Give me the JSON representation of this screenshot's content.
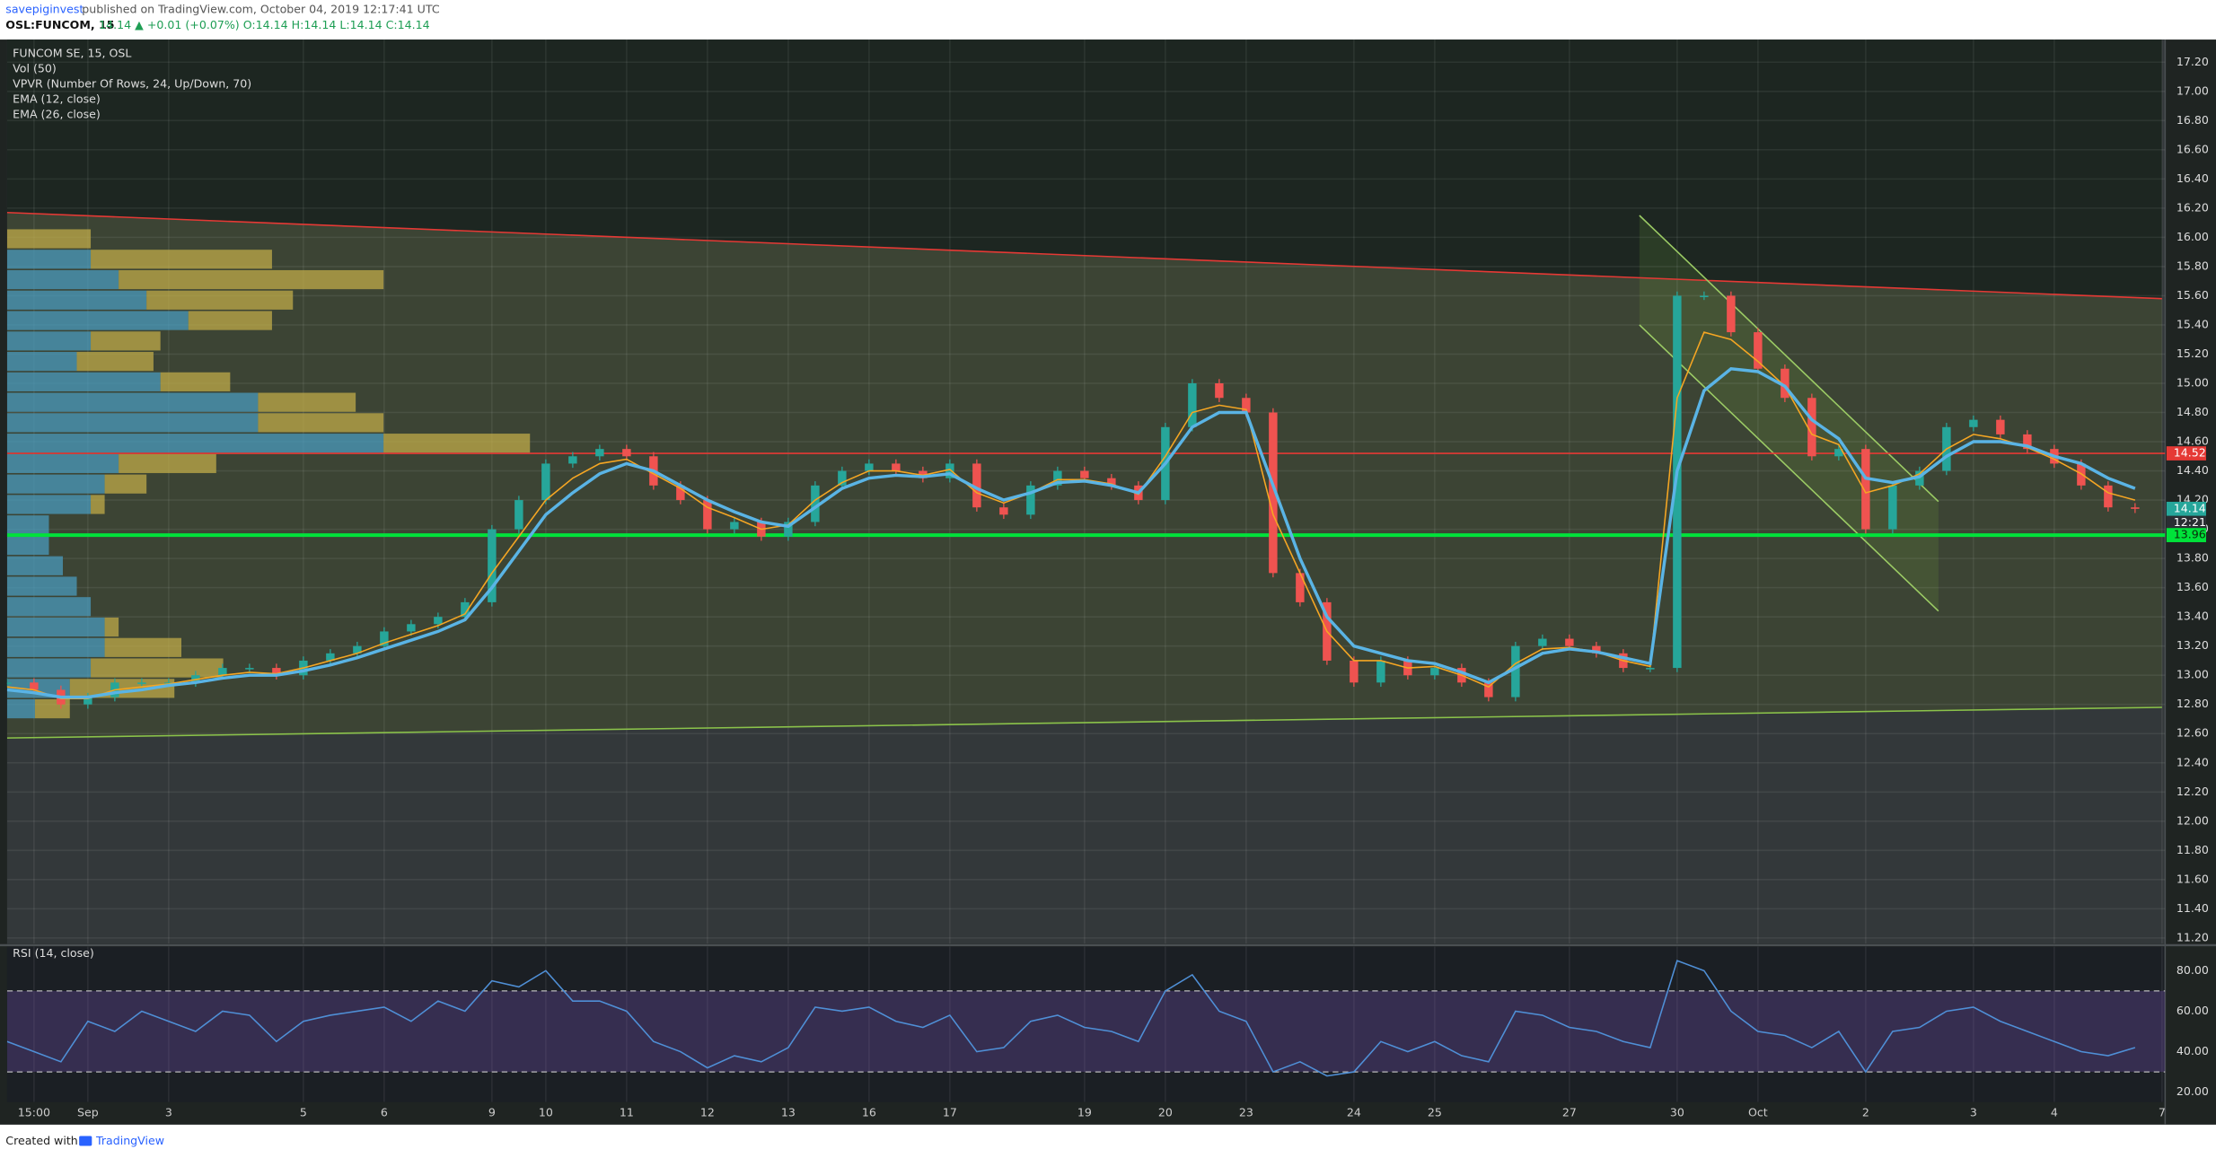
{
  "header": {
    "author": "savepiginvest",
    "published": "published on TradingView.com, October 04, 2019 12:17:41 UTC",
    "symbol": "OSL:FUNCOM, 15",
    "quote": "14.14 ▲ +0.01 (+0.07%) O:14.14 H:14.14 L:14.14 C:14.14"
  },
  "footer": {
    "prefix": "Created with",
    "brand": "TradingView"
  },
  "chart_data": [
    {
      "type": "candlestick",
      "title": "FUNCOM SE, 15, OSL",
      "indicators": [
        "Vol (50)",
        "VPVR (Number Of Rows, 24, Up/Down, 70)",
        "EMA (12, close)",
        "EMA (26, close)"
      ],
      "categories": [
        null,
        "15:00",
        null,
        "Sep",
        null,
        null,
        "3",
        null,
        null,
        null,
        null,
        "5",
        null,
        null,
        "6",
        null,
        null,
        null,
        "9",
        null,
        "10",
        null,
        null,
        "11",
        null,
        null,
        "12",
        null,
        null,
        "13",
        null,
        null,
        "16",
        null,
        null,
        "17",
        null,
        null,
        null,
        null,
        "19",
        null,
        null,
        "20",
        null,
        null,
        "23",
        null,
        null,
        null,
        "24",
        null,
        null,
        "25",
        null,
        null,
        null,
        null,
        "27",
        null,
        null,
        null,
        "30",
        null,
        null,
        "Oct",
        null,
        null,
        null,
        "2",
        null,
        null,
        null,
        "3",
        null,
        null,
        "4",
        null,
        null,
        null,
        "7"
      ],
      "values": [
        12.95,
        12.9,
        12.8,
        12.85,
        12.95,
        12.95,
        12.95,
        13.0,
        13.05,
        13.05,
        13.0,
        13.1,
        13.15,
        13.2,
        13.3,
        13.35,
        13.4,
        13.5,
        14.0,
        14.2,
        14.45,
        14.5,
        14.55,
        14.5,
        14.3,
        14.2,
        14.0,
        14.05,
        13.95,
        14.05,
        14.3,
        14.4,
        14.45,
        14.4,
        14.35,
        14.45,
        14.15,
        14.1,
        14.3,
        14.4,
        14.35,
        14.3,
        14.2,
        14.7,
        15.0,
        14.9,
        14.8,
        13.7,
        13.5,
        13.1,
        12.95,
        13.1,
        13.0,
        13.05,
        12.95,
        12.85,
        13.2,
        13.25,
        13.2,
        13.15,
        13.05,
        13.05,
        15.6,
        15.6,
        15.35,
        15.1,
        14.9,
        14.5,
        14.55,
        14.0,
        14.3,
        14.4,
        14.7,
        14.75,
        14.65,
        14.55,
        14.45,
        14.3,
        14.15,
        14.14,
        null
      ],
      "up_color": "#26a69a",
      "down_color": "#ef5350",
      "series": [
        {
          "name": "EMA (12, close)",
          "color": "#f5a623",
          "values": [
            12.92,
            12.9,
            12.84,
            12.84,
            12.9,
            12.92,
            12.94,
            12.97,
            13.0,
            13.02,
            13.01,
            13.05,
            13.1,
            13.15,
            13.22,
            13.28,
            13.34,
            13.42,
            13.7,
            13.95,
            14.2,
            14.35,
            14.45,
            14.48,
            14.38,
            14.28,
            14.15,
            14.08,
            14.0,
            14.03,
            14.2,
            14.32,
            14.4,
            14.4,
            14.37,
            14.41,
            14.25,
            14.18,
            14.25,
            14.34,
            14.34,
            14.31,
            14.24,
            14.5,
            14.8,
            14.85,
            14.82,
            14.1,
            13.7,
            13.3,
            13.1,
            13.1,
            13.05,
            13.06,
            13.0,
            12.92,
            13.08,
            13.18,
            13.19,
            13.16,
            13.1,
            13.06,
            14.9,
            15.35,
            15.3,
            15.15,
            14.98,
            14.65,
            14.58,
            14.25,
            14.3,
            14.38,
            14.55,
            14.65,
            14.62,
            14.56,
            14.48,
            14.38,
            14.25,
            14.2,
            null
          ]
        },
        {
          "name": "EMA (26, close)",
          "color": "#5ab4e5",
          "values": [
            12.9,
            12.88,
            12.85,
            12.85,
            12.88,
            12.9,
            12.93,
            12.95,
            12.98,
            13.0,
            13.0,
            13.03,
            13.07,
            13.12,
            13.18,
            13.24,
            13.3,
            13.38,
            13.6,
            13.85,
            14.1,
            14.25,
            14.38,
            14.45,
            14.4,
            14.3,
            14.2,
            14.12,
            14.05,
            14.02,
            14.15,
            14.28,
            14.35,
            14.37,
            14.36,
            14.38,
            14.28,
            14.2,
            14.25,
            14.32,
            14.33,
            14.3,
            14.25,
            14.45,
            14.7,
            14.8,
            14.8,
            14.3,
            13.8,
            13.4,
            13.2,
            13.15,
            13.1,
            13.08,
            13.02,
            12.95,
            13.05,
            13.15,
            13.18,
            13.16,
            13.12,
            13.08,
            14.4,
            14.95,
            15.1,
            15.08,
            14.98,
            14.75,
            14.62,
            14.35,
            14.32,
            14.36,
            14.5,
            14.6,
            14.6,
            14.57,
            14.5,
            14.45,
            14.35,
            14.28,
            null
          ]
        }
      ],
      "ylim": [
        11.16,
        17.355
      ],
      "yticks": [
        {
          "value": 11.2,
          "label": "11.20"
        },
        {
          "value": 11.4,
          "label": "11.40"
        },
        {
          "value": 11.6,
          "label": "11.60"
        },
        {
          "value": 11.8,
          "label": "11.80"
        },
        {
          "value": 12.0,
          "label": "12.00"
        },
        {
          "value": 12.2,
          "label": "12.20"
        },
        {
          "value": 12.4,
          "label": "12.40"
        },
        {
          "value": 12.6,
          "label": "12.60"
        },
        {
          "value": 12.8,
          "label": "12.80"
        },
        {
          "value": 13.0,
          "label": "13.00"
        },
        {
          "value": 13.2,
          "label": "13.20"
        },
        {
          "value": 13.4,
          "label": "13.40"
        },
        {
          "value": 13.6,
          "label": "13.60"
        },
        {
          "value": 13.8,
          "label": "13.80"
        },
        {
          "value": 14.0,
          "label": "14.00"
        },
        {
          "value": 14.2,
          "label": "14.20"
        },
        {
          "value": 14.4,
          "label": "14.40"
        },
        {
          "value": 14.6,
          "label": "14.60"
        },
        {
          "value": 14.8,
          "label": "14.80"
        },
        {
          "value": 15.0,
          "label": "15.00"
        },
        {
          "value": 15.2,
          "label": "15.20"
        },
        {
          "value": 15.4,
          "label": "15.40"
        },
        {
          "value": 15.6,
          "label": "15.60"
        },
        {
          "value": 15.8,
          "label": "15.80"
        },
        {
          "value": 16.0,
          "label": "16.00"
        },
        {
          "value": 16.2,
          "label": "16.20"
        },
        {
          "value": 16.4,
          "label": "16.40"
        },
        {
          "value": 16.6,
          "label": "16.60"
        },
        {
          "value": 16.8,
          "label": "16.80"
        },
        {
          "value": 17.0,
          "label": "17.00"
        },
        {
          "value": 17.2,
          "label": "17.20"
        }
      ],
      "grid": true,
      "lines": [
        {
          "points": [
            [
              0,
              16.17
            ],
            [
              80,
              15.58
            ]
          ],
          "color": "#e53935"
        },
        {
          "points": [
            [
              0,
              12.57
            ],
            [
              80,
              12.78
            ]
          ],
          "color": "#8bc34a"
        },
        {
          "points": [
            [
              60.6,
              16.15
            ],
            [
              71.7,
              14.19
            ]
          ],
          "color": "#9ccc65"
        },
        {
          "points": [
            [
              60.6,
              15.4
            ],
            [
              71.7,
              13.44
            ]
          ],
          "color": "#9ccc65"
        }
      ],
      "price_labels": [
        {
          "value": 14.52,
          "color": "#e53935",
          "hline": true
        },
        {
          "value": 14.14,
          "color": "#26a69a",
          "hline": false
        },
        {
          "value": 13.96,
          "color": "#00e23a",
          "hline": true
        }
      ],
      "countdown": "12:21",
      "vpvr": {
        "bins": [
          16.06,
          15.92,
          15.78,
          15.64,
          15.5,
          15.36,
          15.22,
          15.08,
          14.94,
          14.8,
          14.66,
          14.52,
          14.38,
          14.24,
          14.1,
          13.96,
          13.82,
          13.68,
          13.54,
          13.4,
          13.26,
          13.12,
          12.98,
          12.84,
          12.7
        ],
        "up": [
          0,
          60,
          80,
          100,
          130,
          60,
          50,
          110,
          180,
          180,
          270,
          80,
          70,
          60,
          30,
          30,
          40,
          50,
          60,
          70,
          70,
          60,
          45,
          20
        ],
        "down": [
          60,
          130,
          190,
          105,
          60,
          50,
          55,
          50,
          70,
          90,
          105,
          70,
          30,
          10,
          0,
          0,
          0,
          0,
          0,
          10,
          55,
          95,
          75,
          25
        ],
        "up_color": "#4a9fc6",
        "down_color": "#c8b04a"
      }
    },
    {
      "type": "line",
      "title": "RSI (14, close)",
      "color": "#4f8fd6",
      "values": [
        45,
        40,
        35,
        55,
        50,
        60,
        55,
        50,
        60,
        58,
        45,
        55,
        58,
        60,
        62,
        55,
        65,
        60,
        75,
        72,
        80,
        65,
        65,
        60,
        45,
        40,
        32,
        38,
        35,
        42,
        62,
        60,
        62,
        55,
        52,
        58,
        40,
        42,
        55,
        58,
        52,
        50,
        45,
        70,
        78,
        60,
        55,
        30,
        35,
        28,
        30,
        45,
        40,
        45,
        38,
        35,
        60,
        58,
        52,
        50,
        45,
        42,
        85,
        80,
        60,
        50,
        48,
        42,
        50,
        30,
        50,
        52,
        60,
        62,
        55,
        50,
        45,
        40,
        38,
        42,
        null
      ],
      "ylim": [
        15.1,
        91.9
      ],
      "yticks": [
        {
          "value": 20,
          "label": "20.00"
        },
        {
          "value": 40,
          "label": "40.00"
        },
        {
          "value": 60,
          "label": "60.00"
        },
        {
          "value": 80,
          "label": "80.00"
        }
      ],
      "bands": [
        30,
        70
      ]
    }
  ]
}
